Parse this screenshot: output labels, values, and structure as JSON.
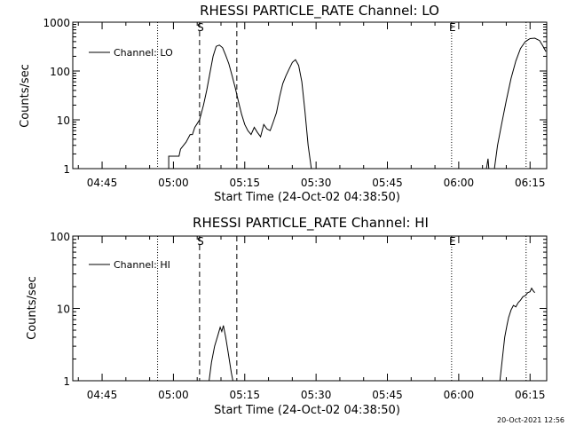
{
  "footer_timestamp": "20-Oct-2021 12:56",
  "chart_data": [
    {
      "type": "line",
      "title": "RHESSI PARTICLE_RATE Channel: LO",
      "xlabel": "Start Time (24-Oct-02 04:38:50)",
      "ylabel": "Counts/sec",
      "yscale": "log",
      "ylim": [
        1,
        1000
      ],
      "xlim": [
        "04:38:50",
        "06:18:30"
      ],
      "y_ticks": [
        "1",
        "10",
        "100",
        "1000"
      ],
      "x_ticks": [
        "04:45",
        "05:00",
        "05:15",
        "05:30",
        "05:45",
        "06:00",
        "06:15"
      ],
      "grid": false,
      "legend_position": "top-left",
      "legend": [
        "Channel: LO"
      ],
      "markers": [
        {
          "time": "05:05:30",
          "style": "dashed",
          "label": "S"
        },
        {
          "time": "05:13:20",
          "style": "dashed",
          "label": ""
        },
        {
          "time": "04:56:40",
          "style": "dotted",
          "label": ""
        },
        {
          "time": "05:58:30",
          "style": "dotted",
          "label": "E"
        },
        {
          "time": "06:14:10",
          "style": "dotted",
          "label": ""
        }
      ],
      "series": [
        {
          "name": "Channel: LO",
          "segments": [
            [
              [
                "04:59:00",
                1
              ],
              [
                "04:59:00",
                1.8
              ],
              [
                "05:01:10",
                1.8
              ],
              [
                "05:01:30",
                2.5
              ],
              [
                "05:02:40",
                3.5
              ],
              [
                "05:03:30",
                5
              ],
              [
                "05:04:00",
                5
              ],
              [
                "05:04:30",
                7
              ],
              [
                "05:05:30",
                10
              ],
              [
                "05:06:20",
                20
              ],
              [
                "05:07:00",
                40
              ],
              [
                "05:07:40",
                90
              ],
              [
                "05:08:20",
                200
              ],
              [
                "05:09:00",
                320
              ],
              [
                "05:09:40",
                340
              ],
              [
                "05:10:20",
                300
              ],
              [
                "05:11:00",
                210
              ],
              [
                "05:11:40",
                140
              ],
              [
                "05:12:20",
                80
              ],
              [
                "05:13:00",
                45
              ],
              [
                "05:13:40",
                24
              ],
              [
                "05:14:20",
                13
              ],
              [
                "05:15:00",
                8
              ],
              [
                "05:15:40",
                6
              ],
              [
                "05:16:20",
                5
              ],
              [
                "05:17:00",
                7
              ],
              [
                "05:17:40",
                5.5
              ],
              [
                "05:18:20",
                4.5
              ],
              [
                "05:19:00",
                8
              ],
              [
                "05:19:40",
                6.5
              ],
              [
                "05:20:20",
                6
              ],
              [
                "05:21:00",
                9
              ],
              [
                "05:21:40",
                14
              ],
              [
                "05:22:20",
                30
              ],
              [
                "05:23:00",
                55
              ],
              [
                "05:23:40",
                80
              ],
              [
                "05:24:20",
                110
              ],
              [
                "05:25:00",
                150
              ],
              [
                "05:25:40",
                170
              ],
              [
                "05:26:20",
                130
              ],
              [
                "05:27:00",
                60
              ],
              [
                "05:27:40",
                15
              ],
              [
                "05:28:20",
                3
              ],
              [
                "05:29:00",
                1
              ]
            ],
            [
              [
                "06:05:50",
                1
              ],
              [
                "06:06:10",
                1.6
              ],
              [
                "06:06:20",
                1
              ],
              [
                "06:07:30",
                1
              ],
              [
                "06:08:10",
                3
              ],
              [
                "06:09:00",
                8
              ],
              [
                "06:10:00",
                25
              ],
              [
                "06:11:00",
                70
              ],
              [
                "06:12:00",
                160
              ],
              [
                "06:13:00",
                290
              ],
              [
                "06:14:00",
                400
              ],
              [
                "06:15:00",
                460
              ],
              [
                "06:16:00",
                470
              ],
              [
                "06:17:00",
                420
              ],
              [
                "06:17:40",
                330
              ],
              [
                "06:18:20",
                250
              ]
            ]
          ]
        }
      ]
    },
    {
      "type": "line",
      "title": "RHESSI PARTICLE_RATE Channel: HI",
      "xlabel": "Start Time (24-Oct-02 04:38:50)",
      "ylabel": "Counts/sec",
      "yscale": "log",
      "ylim": [
        1,
        100
      ],
      "xlim": [
        "04:38:50",
        "06:18:30"
      ],
      "y_ticks": [
        "1",
        "10",
        "100"
      ],
      "x_ticks": [
        "04:45",
        "05:00",
        "05:15",
        "05:30",
        "05:45",
        "06:00",
        "06:15"
      ],
      "grid": false,
      "legend_position": "top-left",
      "legend": [
        "Channel: HI"
      ],
      "markers": [
        {
          "time": "05:05:30",
          "style": "dashed",
          "label": "S"
        },
        {
          "time": "05:13:20",
          "style": "dashed",
          "label": ""
        },
        {
          "time": "04:56:40",
          "style": "dotted",
          "label": ""
        },
        {
          "time": "05:58:30",
          "style": "dotted",
          "label": "E"
        },
        {
          "time": "06:14:10",
          "style": "dotted",
          "label": ""
        }
      ],
      "series": [
        {
          "name": "Channel: HI",
          "segments": [
            [
              [
                "05:07:30",
                1
              ],
              [
                "05:08:00",
                1.8
              ],
              [
                "05:08:40",
                3
              ],
              [
                "05:09:20",
                4.2
              ],
              [
                "05:09:50",
                5.5
              ],
              [
                "05:10:10",
                4.8
              ],
              [
                "05:10:30",
                5.8
              ],
              [
                "05:11:00",
                4
              ],
              [
                "05:11:30",
                2.5
              ],
              [
                "05:12:10",
                1.3
              ],
              [
                "05:12:30",
                1
              ]
            ],
            [
              [
                "06:08:40",
                1
              ],
              [
                "06:09:10",
                2
              ],
              [
                "06:09:40",
                4
              ],
              [
                "06:10:10",
                6
              ],
              [
                "06:10:30",
                7.5
              ],
              [
                "06:11:00",
                9.5
              ],
              [
                "06:11:30",
                11
              ],
              [
                "06:12:00",
                10.5
              ],
              [
                "06:12:30",
                12
              ],
              [
                "06:13:00",
                13
              ],
              [
                "06:13:30",
                14.5
              ],
              [
                "06:14:00",
                15
              ],
              [
                "06:14:30",
                16.5
              ],
              [
                "06:15:00",
                17
              ],
              [
                "06:15:20",
                19
              ],
              [
                "06:15:40",
                17.5
              ],
              [
                "06:16:00",
                16.5
              ]
            ]
          ]
        }
      ]
    }
  ]
}
